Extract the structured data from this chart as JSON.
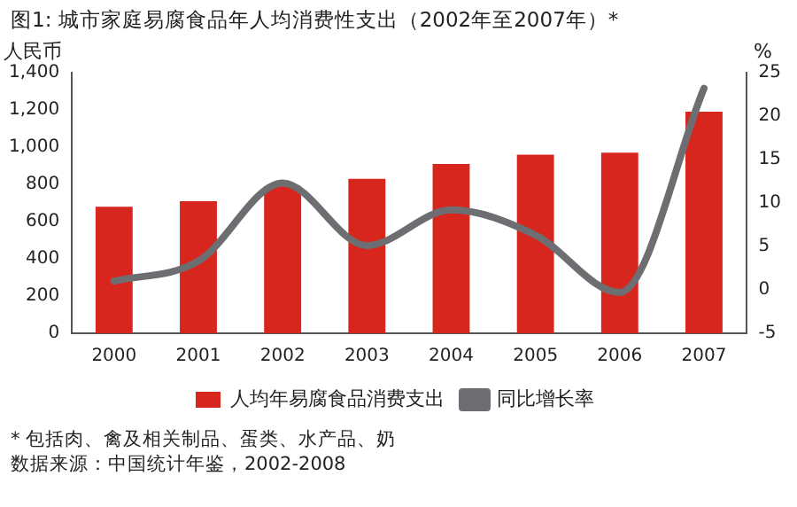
{
  "chart_data": {
    "type": "bar",
    "title": "图1: 城市家庭易腐食品年人均消费性支出（2002年至2007年）*",
    "categories": [
      "2000",
      "2001",
      "2002",
      "2003",
      "2004",
      "2005",
      "2006",
      "2007"
    ],
    "series": [
      {
        "name": "人均年易腐食品消费支出",
        "color": "#d7261e",
        "values": [
          680,
          710,
          790,
          830,
          910,
          960,
          970,
          1190
        ]
      },
      {
        "name": "同比增长率",
        "type": "line",
        "axis": "y2",
        "color": "#6d6e71",
        "values": [
          1.0,
          3.3,
          12.3,
          5.1,
          9.2,
          6.3,
          -0.3,
          23.2
        ]
      }
    ],
    "ylabel": "人民币",
    "y2label": "%",
    "ylim": [
      0,
      1400
    ],
    "yticks": [
      0,
      200,
      400,
      600,
      800,
      {
        "value": 1000,
        "label": "1,000"
      },
      {
        "value": 1200,
        "label": "1,200"
      },
      {
        "value": 1400,
        "label": "1,400"
      }
    ],
    "y2lim": [
      -5,
      25
    ],
    "y2ticks": [
      -5,
      0,
      5,
      10,
      15,
      20,
      25
    ],
    "grid": false,
    "legend": "bottom",
    "marker": "none",
    "annotations": [
      "* 包括肉、禽及相关制品、蛋类、水产品、奶",
      "数据来源：中国统计年鉴，2002-2008"
    ]
  }
}
